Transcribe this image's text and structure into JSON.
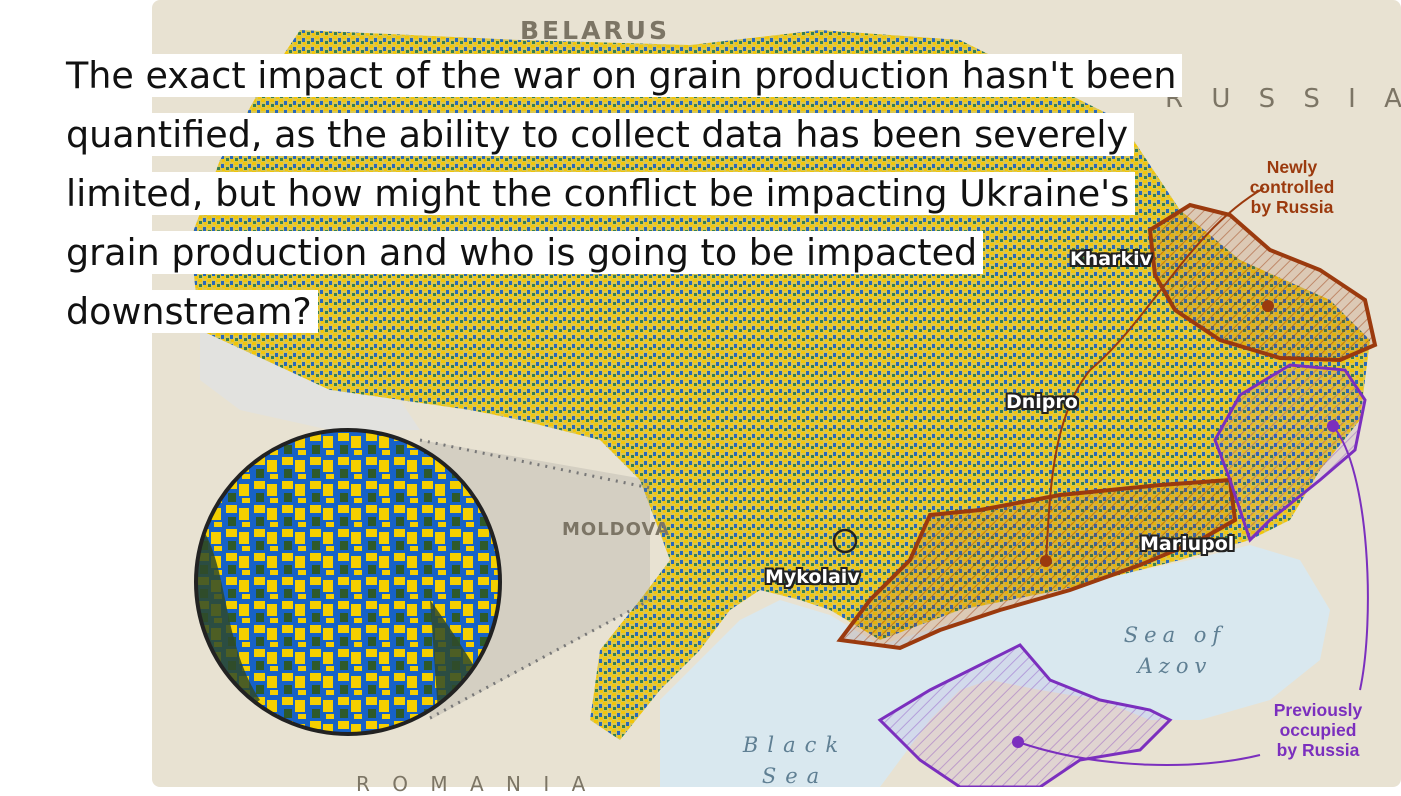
{
  "story": {
    "text": "The exact impact of the war on grain production hasn't been quantified, as the ability to collect data has been severely limited, but how might the conflict be impacting Ukraine's grain production and who is going to be impacted downstream?"
  },
  "map": {
    "countries": {
      "belarus": "BELARUS",
      "russia": "R U S S I A",
      "moldova": "MOLDOVA",
      "romania": "R O M A N I A"
    },
    "cities": {
      "kharkiv": "Kharkiv",
      "dnipro": "Dnipro",
      "mykolaiv": "Mykolaiv",
      "mariupol": "Mariupol"
    },
    "seas": {
      "azov_line1": "Sea of",
      "azov_line2": "Azov",
      "black_line1": "Black",
      "black_line2": "Sea"
    },
    "annotations": {
      "newly_controlled": {
        "line1": "Newly",
        "line2": "controlled",
        "line3": "by Russia",
        "color": "#9b3a0e"
      },
      "previously_occupied": {
        "line1": "Previously",
        "line2": "occupied",
        "line3": "by Russia",
        "color": "#7b2fbe"
      }
    },
    "colors": {
      "crop_yellow": "#f2c400",
      "crop_blue": "#1f62b8",
      "land": "#e8e2d2",
      "water": "#d9e8ef"
    }
  }
}
